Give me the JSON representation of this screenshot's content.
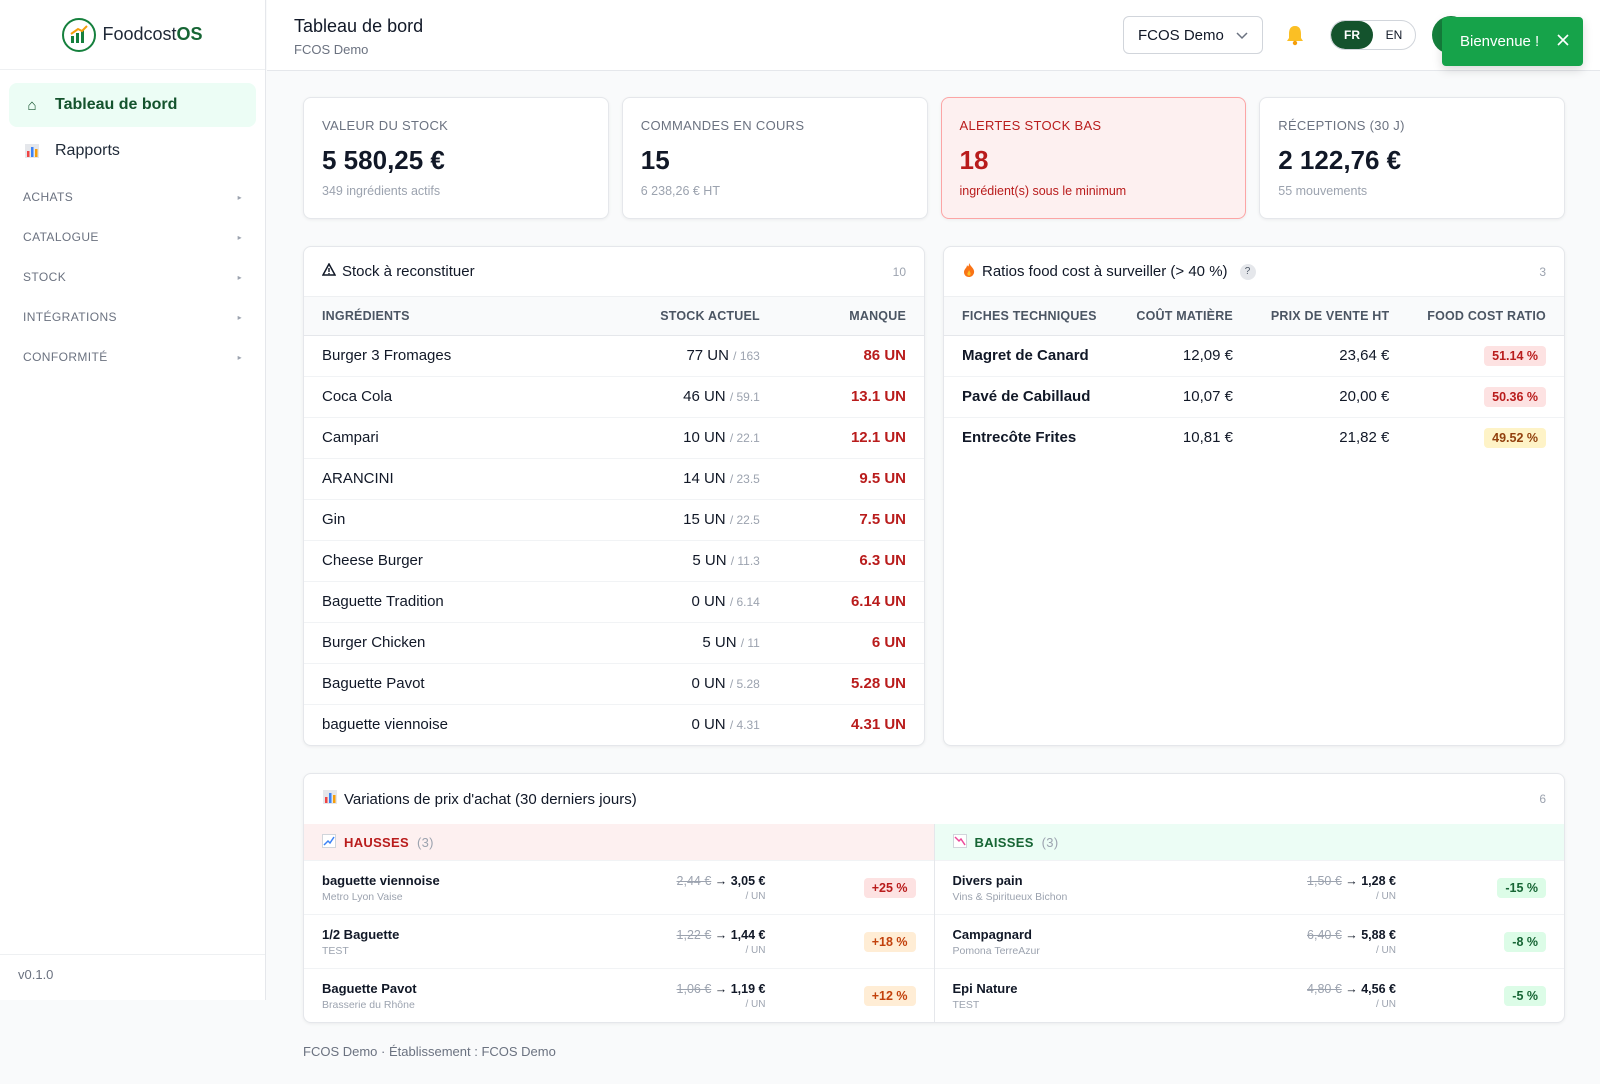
{
  "brand": {
    "name_prefix": "Foodcost",
    "name_suffix": "OS"
  },
  "sidebar": {
    "items": [
      {
        "label": "Tableau de bord",
        "icon": "home-icon"
      },
      {
        "label": "Rapports",
        "icon": "chart-icon"
      }
    ],
    "sections": [
      {
        "label": "ACHATS"
      },
      {
        "label": "CATALOGUE"
      },
      {
        "label": "STOCK"
      },
      {
        "label": "INTÉGRATIONS"
      },
      {
        "label": "CONFORMITÉ"
      }
    ],
    "version": "v0.1.0"
  },
  "header": {
    "title": "Tableau de bord",
    "subtitle": "FCOS Demo",
    "org_select": "FCOS Demo",
    "lang": {
      "fr": "FR",
      "en": "EN",
      "active": "FR"
    }
  },
  "toast": {
    "text": "Bienvenue !"
  },
  "kpis": [
    {
      "label": "VALEUR DU STOCK",
      "value": "5 580,25 €",
      "sub": "349 ingrédients actifs"
    },
    {
      "label": "COMMANDES EN COURS",
      "value": "15",
      "sub": "6 238,26 € HT"
    },
    {
      "label": "ALERTES STOCK BAS",
      "value": "18",
      "sub": "ingrédient(s) sous le minimum"
    },
    {
      "label": "RÉCEPTIONS (30 J)",
      "value": "2 122,76 €",
      "sub": "55 mouvements"
    }
  ],
  "stock_panel": {
    "title": "Stock à reconstituer",
    "count": "10",
    "headers": {
      "c1": "INGRÉDIENTS",
      "c2": "STOCK ACTUEL",
      "c3": "MANQUE"
    },
    "rows": [
      {
        "name": "Burger 3 Fromages",
        "stock": "77 UN",
        "min": "/ 163",
        "missing": "86 UN"
      },
      {
        "name": "Coca Cola",
        "stock": "46 UN",
        "min": "/ 59.1",
        "missing": "13.1 UN"
      },
      {
        "name": "Campari",
        "stock": "10 UN",
        "min": "/ 22.1",
        "missing": "12.1 UN"
      },
      {
        "name": "ARANCINI",
        "stock": "14 UN",
        "min": "/ 23.5",
        "missing": "9.5 UN"
      },
      {
        "name": "Gin",
        "stock": "15 UN",
        "min": "/ 22.5",
        "missing": "7.5 UN"
      },
      {
        "name": "Cheese Burger",
        "stock": "5 UN",
        "min": "/ 11.3",
        "missing": "6.3 UN"
      },
      {
        "name": "Baguette Tradition",
        "stock": "0 UN",
        "min": "/ 6.14",
        "missing": "6.14 UN"
      },
      {
        "name": "Burger Chicken",
        "stock": "5 UN",
        "min": "/ 11",
        "missing": "6 UN"
      },
      {
        "name": "Baguette Pavot",
        "stock": "0 UN",
        "min": "/ 5.28",
        "missing": "5.28 UN"
      },
      {
        "name": "baguette viennoise",
        "stock": "0 UN",
        "min": "/ 4.31",
        "missing": "4.31 UN"
      }
    ]
  },
  "ratio_panel": {
    "title": "Ratios food cost à surveiller (> 40 %)",
    "count": "3",
    "headers": {
      "c1": "FICHES TECHNIQUES",
      "c2": "COÛT MATIÈRE",
      "c3": "PRIX DE VENTE HT",
      "c4": "FOOD COST RATIO"
    },
    "rows": [
      {
        "name": "Magret de Canard",
        "cost": "12,09 €",
        "price": "23,64 €",
        "ratio": "51.14 %",
        "level": "red"
      },
      {
        "name": "Pavé de Cabillaud",
        "cost": "10,07 €",
        "price": "20,00 €",
        "ratio": "50.36 %",
        "level": "red"
      },
      {
        "name": "Entrecôte Frites",
        "cost": "10,81 €",
        "price": "21,82 €",
        "ratio": "49.52 %",
        "level": "amber"
      }
    ]
  },
  "variations": {
    "title": "Variations de prix d'achat (30 derniers jours)",
    "count": "6",
    "up": {
      "label": "HAUSSES",
      "count": "(3)",
      "rows": [
        {
          "name": "baguette viennoise",
          "supplier": "Metro Lyon Vaise",
          "old": "2,44 €",
          "new": "3,05 €",
          "unit": "/ UN",
          "pct": "+25 %",
          "level": "red"
        },
        {
          "name": "1/2 Baguette",
          "supplier": "TEST",
          "old": "1,22 €",
          "new": "1,44 €",
          "unit": "/ UN",
          "pct": "+18 %",
          "level": "orange"
        },
        {
          "name": "Baguette Pavot",
          "supplier": "Brasserie du Rhône",
          "old": "1,06 €",
          "new": "1,19 €",
          "unit": "/ UN",
          "pct": "+12 %",
          "level": "orange"
        }
      ]
    },
    "down": {
      "label": "BAISSES",
      "count": "(3)",
      "rows": [
        {
          "name": "Divers pain",
          "supplier": "Vins & Spiritueux Bichon",
          "old": "1,50 €",
          "new": "1,28 €",
          "unit": "/ UN",
          "pct": "-15 %",
          "level": "green"
        },
        {
          "name": "Campagnard",
          "supplier": "Pomona TerreAzur",
          "old": "6,40 €",
          "new": "5,88 €",
          "unit": "/ UN",
          "pct": "-8 %",
          "level": "green"
        },
        {
          "name": "Epi Nature",
          "supplier": "TEST",
          "old": "4,80 €",
          "new": "4,56 €",
          "unit": "/ UN",
          "pct": "-5 %",
          "level": "green"
        }
      ]
    }
  },
  "footer": {
    "text": "FCOS Demo · Établissement : FCOS Demo"
  }
}
